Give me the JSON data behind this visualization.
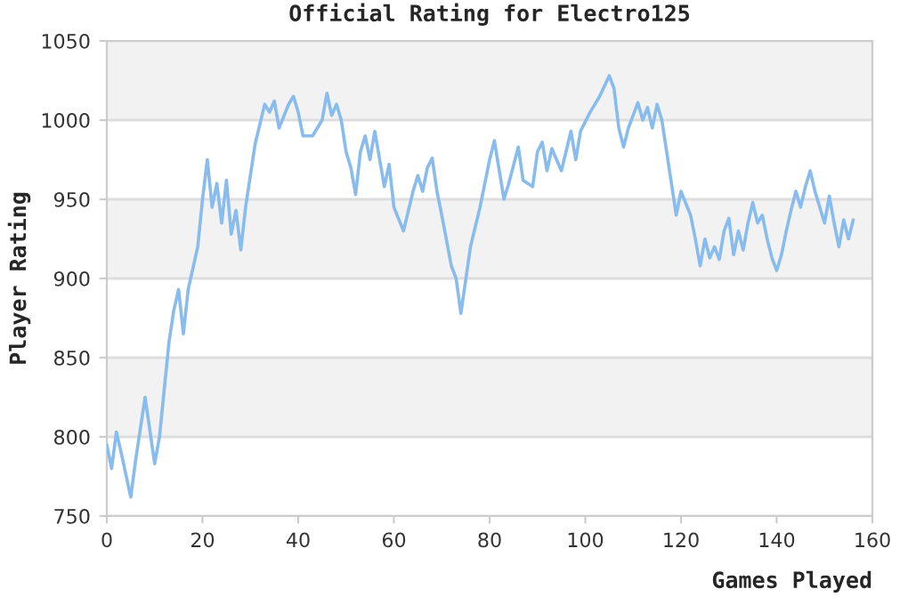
{
  "chart_data": {
    "type": "line",
    "title": "Official Rating for Electro125",
    "xlabel": "Games Played",
    "ylabel": "Player Rating",
    "series": [
      {
        "color": "#88bbee",
        "x": [
          0,
          1,
          2,
          3,
          5,
          6,
          8,
          10,
          11,
          13,
          14,
          15,
          16,
          17,
          19,
          20,
          21,
          22,
          23,
          24,
          25,
          26,
          27,
          28,
          29,
          30,
          31,
          33,
          34,
          35,
          36,
          38,
          39,
          40,
          41,
          43,
          45,
          46,
          47,
          48,
          49,
          50,
          51,
          52,
          53,
          54,
          55,
          56,
          58,
          59,
          60,
          62,
          64,
          65,
          66,
          67,
          68,
          69,
          70,
          72,
          73,
          74,
          76,
          78,
          80,
          81,
          83,
          84,
          86,
          87,
          89,
          90,
          91,
          92,
          93,
          95,
          97,
          98,
          99,
          101,
          103,
          105,
          106,
          107,
          108,
          109,
          111,
          112,
          113,
          114,
          115,
          116,
          117,
          119,
          120,
          122,
          123,
          124,
          125,
          126,
          127,
          128,
          129,
          130,
          131,
          132,
          133,
          134,
          135,
          136,
          137,
          138,
          139,
          140,
          141,
          142,
          143,
          144,
          145,
          146,
          147,
          148,
          150,
          151,
          152,
          153,
          154,
          155,
          156
        ],
        "values": [
          795,
          780,
          803,
          790,
          762,
          785,
          825,
          783,
          800,
          860,
          880,
          893,
          865,
          893,
          920,
          950,
          975,
          945,
          960,
          935,
          962,
          928,
          943,
          918,
          945,
          965,
          985,
          1010,
          1005,
          1012,
          995,
          1010,
          1015,
          1005,
          990,
          990,
          1000,
          1017,
          1003,
          1010,
          1000,
          980,
          970,
          953,
          980,
          990,
          975,
          993,
          958,
          972,
          945,
          930,
          955,
          965,
          955,
          970,
          976,
          955,
          940,
          908,
          900,
          878,
          920,
          945,
          975,
          987,
          950,
          960,
          983,
          962,
          958,
          980,
          986,
          968,
          982,
          968,
          993,
          975,
          993,
          1005,
          1015,
          1028,
          1020,
          995,
          983,
          995,
          1011,
          1000,
          1008,
          995,
          1010,
          1000,
          980,
          940,
          955,
          940,
          925,
          908,
          925,
          913,
          920,
          912,
          930,
          938,
          915,
          930,
          918,
          935,
          948,
          935,
          940,
          925,
          913,
          905,
          915,
          930,
          943,
          955,
          945,
          958,
          968,
          955,
          935,
          952,
          935,
          920,
          937,
          925,
          937
        ]
      }
    ],
    "xlim": [
      0,
      160
    ],
    "xticks": [
      0,
      20,
      40,
      60,
      80,
      100,
      120,
      140,
      160
    ],
    "ylim": [
      750,
      1050
    ],
    "yticks": [
      750,
      800,
      850,
      900,
      950,
      1000,
      1050
    ],
    "grid": "y",
    "line_style": "solid",
    "marker": "none",
    "bands": [
      {
        "axis": "y",
        "from": 1000,
        "to": 1050,
        "color": "#f2f2f2"
      },
      {
        "axis": "y",
        "from": 900,
        "to": 950,
        "color": "#f2f2f2"
      },
      {
        "axis": "y",
        "from": 800,
        "to": 850,
        "color": "#f2f2f2"
      }
    ]
  }
}
